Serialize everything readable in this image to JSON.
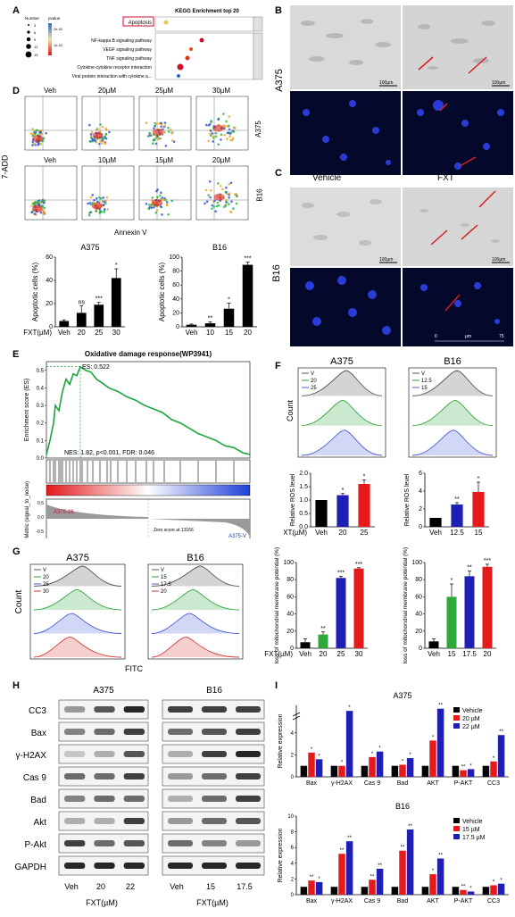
{
  "panelA": {
    "label": "A",
    "title": "KEGG Enrichment top 20",
    "legend_number": "Number",
    "legend_pvalue": "pvalue",
    "number_ticks": [
      "3",
      "6",
      "9",
      "12",
      "15"
    ],
    "pvalue_ticks": [
      "2e-02",
      "1e-02"
    ],
    "terms": [
      "Apoptosis",
      "NF-kappa B signaling pathway",
      "VEGF signaling pathway",
      "TNF signaling pathway",
      "Cytokine-cytokine receptor interaction",
      "Viral protein interaction with cytokine a..."
    ]
  },
  "panelB": {
    "label": "B",
    "cell": "A375",
    "scale": "100µm"
  },
  "panelC": {
    "label": "C",
    "cell": "B16",
    "col1": "Vehicle",
    "col2": "FXT",
    "scale": "100µm",
    "axis_0": "0",
    "axis_um": "µm",
    "axis_75": "75"
  },
  "panelD": {
    "label": "D",
    "yaxis": "7-ADD",
    "xaxis": "Annexin V",
    "row1_cell": "A375",
    "row2_cell": "B16",
    "row1_doses": [
      "Veh",
      "20µM",
      "25µM",
      "30µM"
    ],
    "row2_doses": [
      "Veh",
      "10µM",
      "15µM",
      "20µM"
    ]
  },
  "chart_data": [
    {
      "type": "bar",
      "id": "D-A375",
      "title": "A375",
      "ylabel": "Apoptotic cells (%)",
      "xlabel": "FXT(µM)",
      "categories": [
        "Veh",
        "20",
        "25",
        "30"
      ],
      "values": [
        5,
        12,
        19,
        42
      ],
      "errors": [
        1,
        6,
        2,
        8
      ],
      "significance": [
        "",
        "ns",
        "***",
        "*"
      ],
      "ylim": [
        0,
        60
      ],
      "yticks": [
        "0",
        "20",
        "40",
        "60"
      ]
    },
    {
      "type": "bar",
      "id": "D-B16",
      "title": "B16",
      "ylabel": "Apoptotic cells (%)",
      "xlabel": "",
      "categories": [
        "Veh",
        "10",
        "15",
        "20"
      ],
      "values": [
        3,
        5,
        26,
        89
      ],
      "errors": [
        1,
        2,
        8,
        4
      ],
      "significance": [
        "",
        "**",
        "*",
        "***"
      ],
      "ylim": [
        0,
        100
      ],
      "yticks": [
        "0",
        "20",
        "40",
        "60",
        "80",
        "100"
      ]
    },
    {
      "type": "line",
      "id": "E",
      "title": "Oxidative damage response(WP3941)",
      "ylabel": "Enrichment score (ES)",
      "ylabel2": "Ranked Metric (signal_to_noise)",
      "es_label": "ES: 0.522",
      "stats": "NES: 1.82, p<0.001, FDR: 0.046",
      "left_group": "A375-26",
      "right_group": "A375-V",
      "zero_label": "Zero score at 13166",
      "yticks": [
        "0.5",
        "0.4",
        "0.3",
        "0.2",
        "0.1",
        "0.0"
      ],
      "rank_yticks": [
        "0.5",
        "0.0",
        "-0.5"
      ],
      "ylim": [
        0,
        0.55
      ]
    },
    {
      "type": "bar",
      "id": "F-A375",
      "ylabel": "Relative ROS level",
      "xlabel": "FXT(µM)",
      "categories": [
        "Veh",
        "20",
        "25"
      ],
      "values": [
        1.0,
        1.18,
        1.6
      ],
      "errors": [
        0,
        0.06,
        0.15
      ],
      "significance": [
        "",
        "*",
        "*"
      ],
      "ylim": [
        0,
        2.0
      ],
      "yticks": [
        "0.0",
        "0.5",
        "1.0",
        "1.5",
        "2.0"
      ]
    },
    {
      "type": "bar",
      "id": "F-B16",
      "ylabel": "Relative ROS level",
      "xlabel": "",
      "categories": [
        "Veh",
        "12.5",
        "15"
      ],
      "values": [
        1.0,
        2.5,
        3.9
      ],
      "errors": [
        0,
        0.2,
        1.1
      ],
      "significance": [
        "",
        "**",
        "*"
      ],
      "ylim": [
        0,
        6
      ],
      "yticks": [
        "0",
        "2",
        "4",
        "6"
      ]
    },
    {
      "type": "bar",
      "id": "G-A375",
      "ylabel": "loss of mitochondrial membrane potential (%)",
      "xlabel": "FXT(µM)",
      "categories": [
        "Veh",
        "20",
        "25",
        "30"
      ],
      "values": [
        7,
        16,
        82,
        93
      ],
      "errors": [
        4,
        3,
        2,
        1
      ],
      "significance": [
        "",
        "**",
        "***",
        "***"
      ],
      "ylim": [
        0,
        100
      ],
      "yticks": [
        "0",
        "20",
        "40",
        "60",
        "80",
        "100"
      ]
    },
    {
      "type": "bar",
      "id": "G-B16",
      "ylabel": "loss of mitochondrial membrane potential (%)",
      "xlabel": "",
      "categories": [
        "Veh",
        "15",
        "17.5",
        "20"
      ],
      "values": [
        8,
        60,
        84,
        95
      ],
      "errors": [
        3,
        15,
        6,
        3
      ],
      "significance": [
        "",
        "*",
        "**",
        "***"
      ],
      "ylim": [
        0,
        100
      ],
      "yticks": [
        "0",
        "20",
        "40",
        "60",
        "80",
        "100"
      ]
    },
    {
      "type": "bar",
      "id": "I-A375",
      "title": "A375",
      "ylabel": "Relative expression",
      "categories": [
        "Bax",
        "γ-H2AX",
        "Cas 9",
        "Bad",
        "AKT",
        "P-AKT",
        "CC3"
      ],
      "series": [
        {
          "name": "Vehicle",
          "values": [
            1,
            1,
            1,
            1,
            1,
            1,
            1
          ],
          "color": "#000000"
        },
        {
          "name": "20 µM",
          "values": [
            2.2,
            1.0,
            1.8,
            1.1,
            3.3,
            0.6,
            1.4
          ],
          "color": "#e41a1c"
        },
        {
          "name": "22 µM",
          "values": [
            1.6,
            6.0,
            2.3,
            1.7,
            6.2,
            0.7,
            3.8
          ],
          "color": "#1f1fb4"
        }
      ],
      "significance": [
        [
          "*",
          "*"
        ],
        [
          "*",
          "*"
        ],
        [
          "*",
          "*"
        ],
        [
          "*",
          "*"
        ],
        [
          "*",
          "**"
        ],
        [
          "**",
          "*"
        ],
        [
          "*",
          "**"
        ]
      ],
      "yticks": [
        "0",
        "2",
        "4"
      ]
    },
    {
      "type": "bar",
      "id": "I-B16",
      "title": "B16",
      "ylabel": "Relative expression",
      "categories": [
        "Bax",
        "γ-H2AX",
        "Cas 9",
        "Bad",
        "AKT",
        "P-AKT",
        "CC3"
      ],
      "series": [
        {
          "name": "Vehicle",
          "values": [
            1,
            1,
            1,
            1,
            1,
            1,
            1
          ],
          "color": "#000000"
        },
        {
          "name": "15 µM",
          "values": [
            1.8,
            5.2,
            1.9,
            5.6,
            2.6,
            0.6,
            1.2
          ],
          "color": "#e41a1c"
        },
        {
          "name": "17.5 µM",
          "values": [
            1.6,
            6.8,
            3.3,
            8.3,
            4.6,
            0.4,
            1.4
          ],
          "color": "#1f1fb4"
        }
      ],
      "significance": [
        [
          "**",
          "*"
        ],
        [
          "**",
          "**"
        ],
        [
          "**",
          "**"
        ],
        [
          "**",
          "**"
        ],
        [
          "*",
          "**"
        ],
        [
          "**",
          "*"
        ],
        [
          "*",
          "*"
        ]
      ],
      "ylim": [
        0,
        10
      ],
      "yticks": [
        "0",
        "2",
        "4",
        "6",
        "8",
        "10"
      ]
    }
  ],
  "panelE": {
    "label": "E"
  },
  "panelF": {
    "label": "F",
    "ylabel": "Count",
    "left_title": "A375",
    "right_title": "B16",
    "left_legend": [
      "V",
      "20",
      "25"
    ],
    "right_legend": [
      "V",
      "12.5",
      "15"
    ]
  },
  "panelG": {
    "label": "G",
    "ylabel": "Count",
    "xlabel": "FITC",
    "left_title": "A375",
    "right_title": "B16",
    "left_legend": [
      "V",
      "20",
      "25",
      "30"
    ],
    "right_legend": [
      "V",
      "15",
      "17.5",
      "20"
    ]
  },
  "panelH": {
    "label": "H",
    "left_title": "A375",
    "right_title": "B16",
    "proteins": [
      "CC3",
      "Bax",
      "γ-H2AX",
      "Cas 9",
      "Bad",
      "Akt",
      "P-Akt",
      "GAPDH"
    ],
    "left_lanes": [
      "Veh",
      "20",
      "22"
    ],
    "right_lanes": [
      "Veh",
      "15",
      "17.5"
    ],
    "xlabel": "FXT(µM)"
  },
  "panelI": {
    "label": "I"
  }
}
